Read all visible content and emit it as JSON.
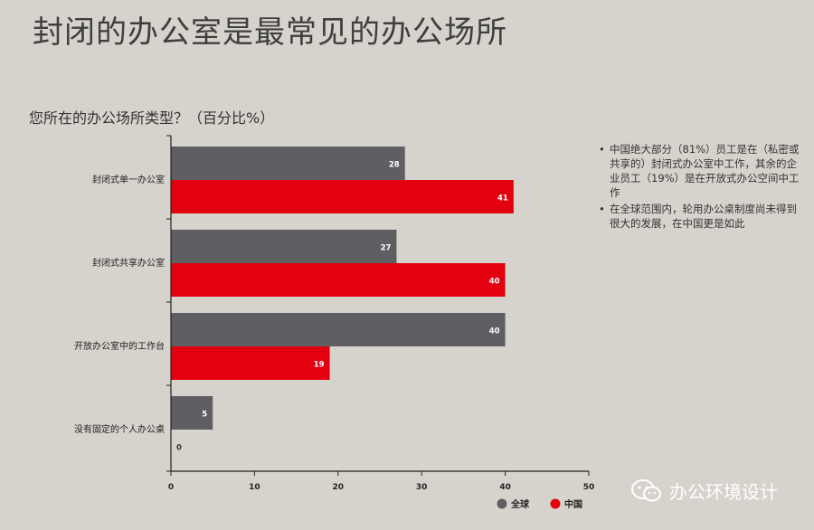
{
  "title": "封闭的办公室是最常见的办公场所",
  "subtitle": "您所在的办公场所类型？（百分比%）",
  "notes": [
    "中国绝大部分（81%）员工是在（私密或共享的）封闭式办公室中工作，其余的企业员工（19%）是在开放式办公空间中工作",
    "在全球范围内，轮用办公桌制度尚未得到很大的发展，在中国更是如此"
  ],
  "watermark": {
    "text": "办公环境设计",
    "icon": "wechat-icon"
  },
  "colors": {
    "global": "#5f5e63",
    "china": "#e3000f",
    "background": "#d6d3cc"
  },
  "chart_data": {
    "type": "bar",
    "orientation": "horizontal",
    "categories": [
      "封闭式单一办公室",
      "封闭式共享办公室",
      "开放办公室中的工作台",
      "没有固定的个人办公桌"
    ],
    "series": [
      {
        "name": "全球",
        "values": [
          28,
          27,
          40,
          5
        ]
      },
      {
        "name": "中国",
        "values": [
          41,
          40,
          19,
          0
        ]
      }
    ],
    "xlim": [
      0,
      50
    ],
    "xticks": [
      0,
      10,
      20,
      30,
      40,
      50
    ],
    "grid": false,
    "legend_position": "bottom-right"
  }
}
